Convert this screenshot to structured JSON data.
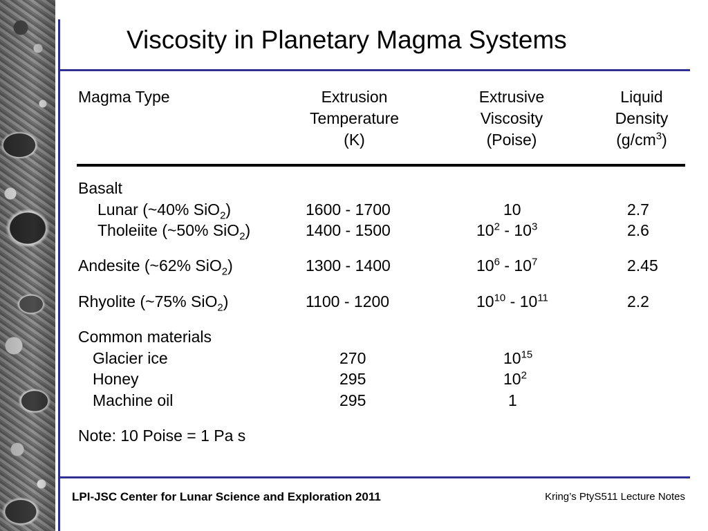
{
  "title": "Viscosity in Planetary Magma Systems",
  "headers": {
    "magma_type": "Magma Type",
    "temperature": [
      "Extrusion",
      "Temperature",
      "(K)"
    ],
    "viscosity": [
      "Extrusive",
      "Viscosity",
      "(Poise)"
    ],
    "density": [
      "Liquid",
      "Density",
      "(g/cm",
      "3",
      ")"
    ]
  },
  "rows": {
    "basalt_label": "Basalt",
    "lunar": {
      "name": "Lunar (~40% SiO",
      "sub": "2",
      "close": ")",
      "temp": "1600 - 1700",
      "visc": "10",
      "density": "2.7"
    },
    "tholeiite": {
      "name": "Tholeiite (~50% SiO",
      "sub": "2",
      "close": ")",
      "temp": "1400 - 1500",
      "visc_a": "10",
      "visc_a_exp": "2",
      "visc_sep": " - 10",
      "visc_b_exp": "3",
      "density": "2.6"
    },
    "andesite": {
      "name": "Andesite (~62% SiO",
      "sub": "2",
      "close": ")",
      "temp": "1300 - 1400",
      "visc_a": "10",
      "visc_a_exp": "6",
      "visc_sep": " - 10",
      "visc_b_exp": "7",
      "density": "2.45"
    },
    "rhyolite": {
      "name": "Rhyolite (~75% SiO",
      "sub": "2",
      "close": ")",
      "temp": "1100 - 1200",
      "visc_a": "10",
      "visc_a_exp": "10",
      "visc_sep": " - 10",
      "visc_b_exp": "11",
      "density": "2.2"
    },
    "common_label": "Common materials",
    "glacier": {
      "name": "Glacier ice",
      "temp": "270",
      "visc": "10",
      "visc_exp": "15"
    },
    "honey": {
      "name": "Honey",
      "temp": "295",
      "visc": "10",
      "visc_exp": "2"
    },
    "oil": {
      "name": "Machine oil",
      "temp": "295",
      "visc": "1"
    }
  },
  "note": "Note:  10 Poise = 1 Pa s",
  "footer": {
    "left": "LPI-JSC Center for Lunar Science and Exploration 2011",
    "right": "Kring’s PtyS511 Lecture Notes"
  },
  "colors": {
    "accent_lines": "#2e3192"
  }
}
